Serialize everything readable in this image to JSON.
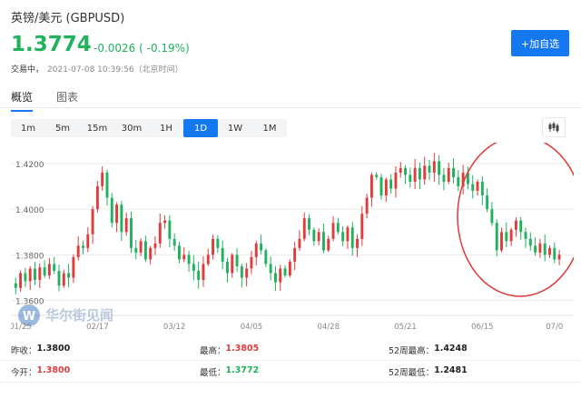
{
  "header": {
    "title": "英镑/美元  (GBPUSD)",
    "price": "1.3774",
    "change": "-0.0026 ( -0.19%)",
    "status": "交易中，",
    "timestamp": "2021-07-08 10:39:56（北京时间）",
    "add_button": "+加自选"
  },
  "tabs": [
    {
      "label": "概览",
      "active": true
    },
    {
      "label": "图表",
      "active": false
    }
  ],
  "periods": [
    {
      "label": "1m",
      "active": false
    },
    {
      "label": "5m",
      "active": false
    },
    {
      "label": "15m",
      "active": false
    },
    {
      "label": "30m",
      "active": false
    },
    {
      "label": "1H",
      "active": false
    },
    {
      "label": "1D",
      "active": true
    },
    {
      "label": "1W",
      "active": false
    },
    {
      "label": "1M",
      "active": false
    }
  ],
  "chart_type_icon": "candlestick-icon",
  "colors": {
    "up": "#e03c3c",
    "down": "#20b25d",
    "accent": "#1478f0",
    "annotation": "#e03a3a"
  },
  "chart_data": {
    "type": "candlestick",
    "y_ticks": [
      "1.4200",
      "1.4000",
      "1.3800",
      "1.3600"
    ],
    "y_tick_values": [
      1.42,
      1.4,
      1.38,
      1.36
    ],
    "ylim": [
      1.3535,
      1.4275
    ],
    "x_ticks": [
      "01/25",
      "02/17",
      "03/12",
      "04/05",
      "04/28",
      "05/21",
      "06/15",
      "07/0"
    ],
    "x_tick_positions": [
      1,
      17,
      33,
      49,
      65,
      81,
      97,
      112
    ],
    "xlim": [
      -1,
      116
    ],
    "grid": "horizontal",
    "watermark": "华尔街见闻",
    "annotation": "red ellipse around June–July decline",
    "closes": [
      1.3655,
      1.372,
      1.3685,
      1.374,
      1.369,
      1.3745,
      1.371,
      1.376,
      1.373,
      1.3665,
      1.372,
      1.37,
      1.379,
      1.384,
      1.383,
      1.389,
      1.4,
      1.41,
      1.416,
      1.405,
      1.394,
      1.402,
      1.39,
      1.396,
      1.383,
      1.381,
      1.386,
      1.378,
      1.383,
      1.385,
      1.394,
      1.395,
      1.387,
      1.384,
      1.378,
      1.38,
      1.376,
      1.373,
      1.369,
      1.376,
      1.38,
      1.387,
      1.383,
      1.377,
      1.372,
      1.38,
      1.375,
      1.37,
      1.374,
      1.379,
      1.385,
      1.382,
      1.376,
      1.372,
      1.368,
      1.374,
      1.371,
      1.377,
      1.383,
      1.387,
      1.396,
      1.391,
      1.386,
      1.39,
      1.382,
      1.387,
      1.394,
      1.39,
      1.386,
      1.392,
      1.383,
      1.387,
      1.398,
      1.405,
      1.415,
      1.414,
      1.406,
      1.413,
      1.409,
      1.416,
      1.418,
      1.415,
      1.412,
      1.418,
      1.413,
      1.419,
      1.416,
      1.421,
      1.415,
      1.412,
      1.418,
      1.414,
      1.41,
      1.416,
      1.411,
      1.408,
      1.412,
      1.406,
      1.4,
      1.394,
      1.382,
      1.39,
      1.386,
      1.391,
      1.395,
      1.39,
      1.387,
      1.384,
      1.381,
      1.385,
      1.38,
      1.383,
      1.378,
      1.38
    ]
  },
  "stats": {
    "row1": [
      {
        "label": "昨收：",
        "value": "1.3800",
        "color": "neutral"
      },
      {
        "label": "最高：",
        "value": "1.3805",
        "color": "red"
      },
      {
        "label": "52周最高：",
        "value": "1.4248",
        "color": "neutral"
      }
    ],
    "row2": [
      {
        "label": "今开：",
        "value": "1.3800",
        "color": "red"
      },
      {
        "label": "最低：",
        "value": "1.3772",
        "color": "green"
      },
      {
        "label": "52周最低：",
        "value": "1.2481",
        "color": "neutral"
      }
    ]
  }
}
